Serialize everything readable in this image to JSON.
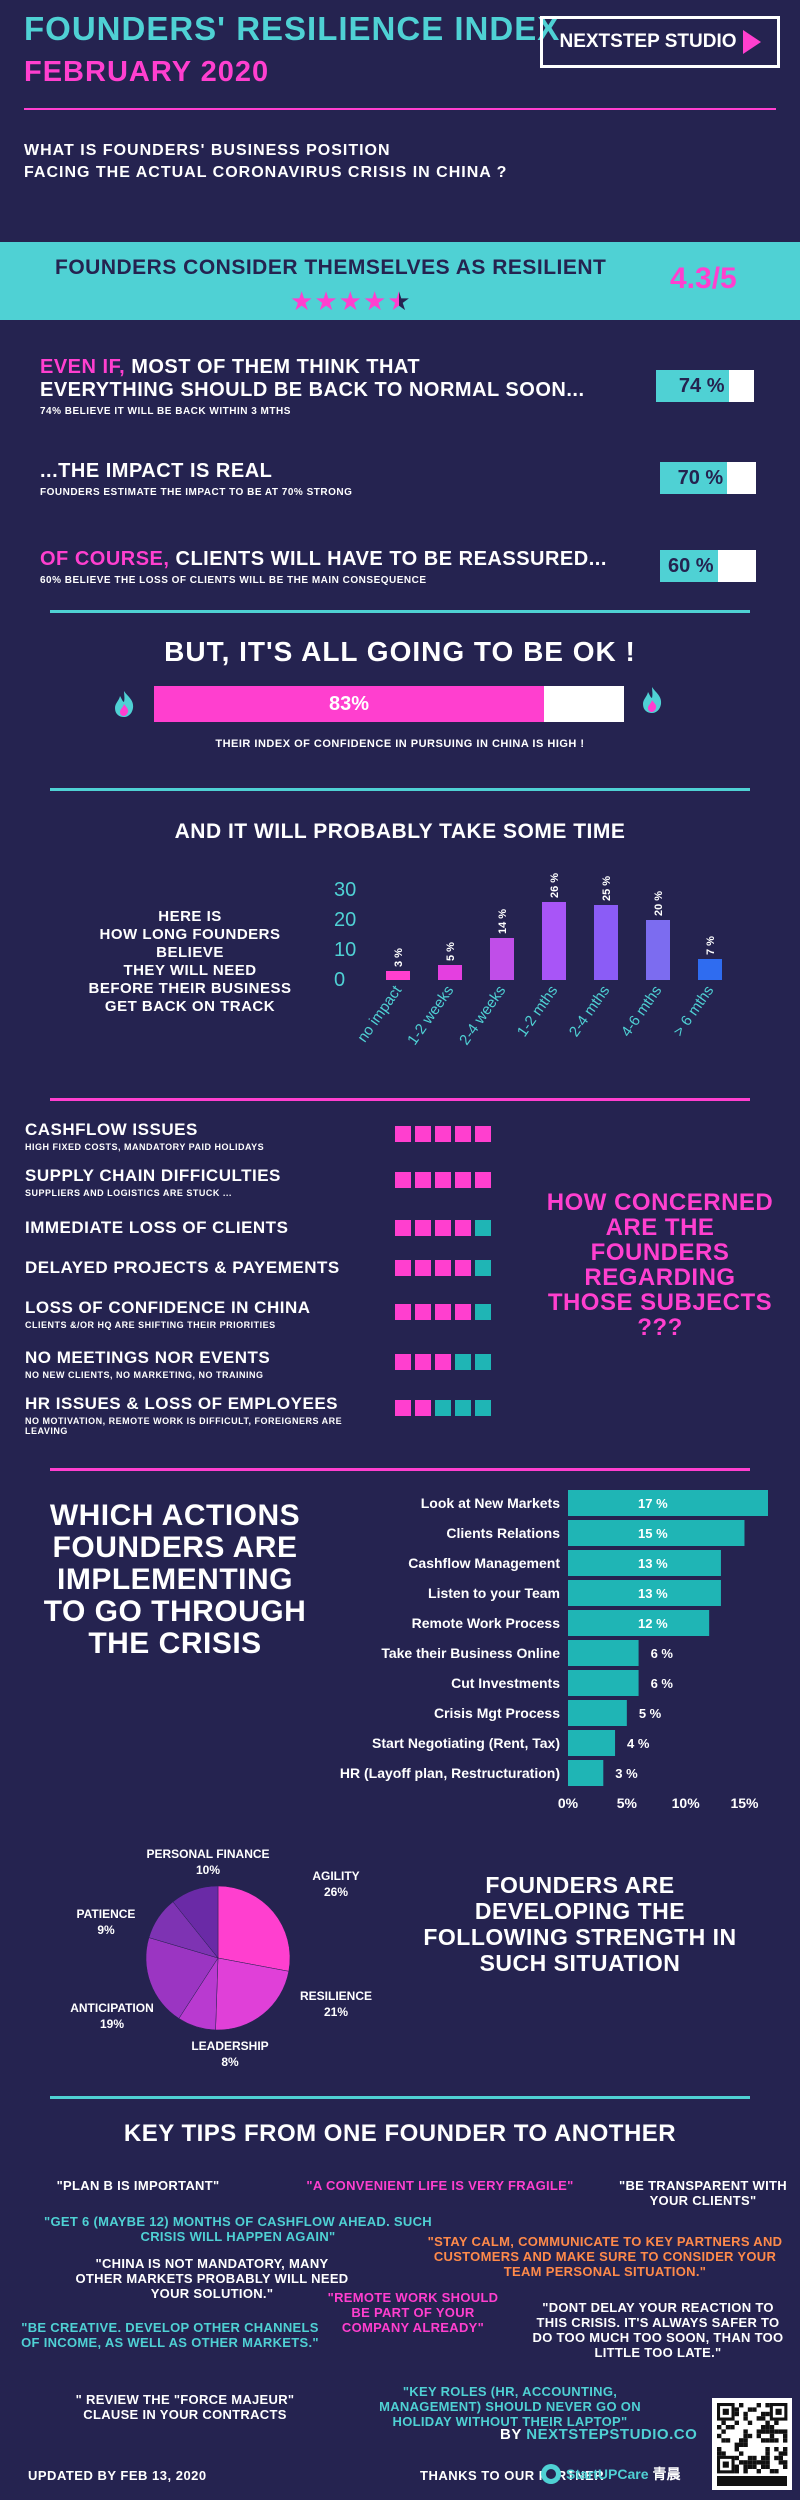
{
  "header": {
    "title": "FOUNDERS' RESILIENCE INDEX",
    "date": "FEBRUARY 2020",
    "logo": "NEXTSTEP STUDIO",
    "question_line1": "WHAT IS FOUNDERS' BUSINESS POSITION",
    "question_line2": "FACING THE ACTUAL CORONAVIRUS CRISIS IN CHINA ?"
  },
  "resilience": {
    "title": "FOUNDERS CONSIDER THEMSELVES AS RESILIENT",
    "score": "4.3/5",
    "stars_value": 4.3,
    "stars_max": 5
  },
  "statements": [
    {
      "prefix": "EVEN IF,",
      "head_rest": " MOST OF THEM THINK THAT",
      "head_line2": "EVERYTHING SHOULD BE BACK TO NORMAL SOON...",
      "sub": "74% BELIEVE IT WILL BE BACK WITHIN 3 MTHS",
      "value_label": "74 %",
      "value": 74
    },
    {
      "prefix": "",
      "head_rest": "...THE IMPACT IS REAL",
      "head_line2": "",
      "sub": "FOUNDERS ESTIMATE THE IMPACT TO BE AT 70% STRONG",
      "value_label": "70 %",
      "value": 70
    },
    {
      "prefix": "OF COURSE,",
      "head_rest": " CLIENTS WILL HAVE TO BE REASSURED...",
      "head_line2": "",
      "sub": "60% BELIEVE THE LOSS OF CLIENTS WILL BE THE MAIN CONSEQUENCE",
      "value_label": "60 %",
      "value": 60
    }
  ],
  "confidence": {
    "title": "BUT, IT'S ALL GOING TO BE OK !",
    "value_label": "83%",
    "value": 83,
    "caption": "THEIR INDEX OF CONFIDENCE IN PURSUING IN CHINA IS HIGH !"
  },
  "time": {
    "title": "AND IT WILL PROBABLY TAKE SOME TIME",
    "text_lines": [
      "HERE IS",
      "HOW LONG FOUNDERS",
      "BELIEVE",
      "THEY WILL NEED",
      "BEFORE THEIR BUSINESS",
      "GET BACK ON TRACK"
    ]
  },
  "chart_data": [
    {
      "type": "bar",
      "categories": [
        "no impact",
        "1-2 weeks",
        "2-4 weeks",
        "1-2 mths",
        "2-4 mths",
        "4-6 mths",
        "> 6 mths"
      ],
      "values": [
        3,
        5,
        14,
        26,
        25,
        20,
        7
      ],
      "data_labels": [
        "3 %",
        "5 %",
        "14 %",
        "26 %",
        "25 %",
        "20 %",
        "7 %"
      ],
      "colors": [
        "#ff3fcf",
        "#e43fe0",
        "#c04ee8",
        "#a855f7",
        "#8b5cf6",
        "#7c6cf0",
        "#2f6cf0"
      ],
      "yticks": [
        "30",
        "20",
        "10",
        "0"
      ],
      "ylim": [
        0,
        30
      ]
    },
    {
      "type": "bar",
      "orientation": "horizontal",
      "categories": [
        "Look at New Markets",
        "Clients Relations",
        "Cashflow Management",
        "Listen to your Team",
        "Remote Work Process",
        "Take their Business Online",
        "Cut Investments",
        "Crisis Mgt Process",
        "Start Negotiating (Rent, Tax)",
        "HR (Layoff plan, Restructuration)"
      ],
      "values": [
        17,
        15,
        13,
        13,
        12,
        6,
        6,
        5,
        4,
        3
      ],
      "data_labels": [
        "17 %",
        "15 %",
        "13 %",
        "13 %",
        "12 %",
        "6 %",
        "6 %",
        "5 %",
        "4 %",
        "3 %"
      ],
      "xticks": [
        "0%",
        "5%",
        "10%",
        "15%"
      ],
      "xlim": [
        0,
        17
      ]
    },
    {
      "type": "pie",
      "labels": [
        "AGILITY",
        "RESILIENCE",
        "LEADERSHIP",
        "ANTICIPATION",
        "PATIENCE",
        "PERSONAL FINANCE"
      ],
      "values": [
        26,
        21,
        8,
        19,
        9,
        10
      ],
      "value_labels": [
        "26%",
        "21%",
        "8%",
        "19%",
        "9%",
        "10%"
      ],
      "colors": [
        "#ff3fcf",
        "#e040d8",
        "#b93ad0",
        "#9b35c2",
        "#7e33b3",
        "#6a2aa6"
      ]
    }
  ],
  "concerns": {
    "question": "HOW CONCERNED ARE THE FOUNDERS REGARDING THOSE SUBJECTS ???",
    "items": [
      {
        "title": "CASHFLOW ISSUES",
        "sub": "HIGH FIXED COSTS, MANDATORY PAID HOLIDAYS",
        "level": 5
      },
      {
        "title": "SUPPLY CHAIN DIFFICULTIES",
        "sub": "SUPPLIERS AND LOGISTICS ARE STUCK ...",
        "level": 5
      },
      {
        "title": "IMMEDIATE LOSS OF CLIENTS",
        "sub": "",
        "level": 4
      },
      {
        "title": "DELAYED PROJECTS & PAYEMENTS",
        "sub": "",
        "level": 4
      },
      {
        "title": "LOSS OF CONFIDENCE IN CHINA",
        "sub": "CLIENTS &/OR HQ ARE SHIFTING THEIR PRIORITIES",
        "level": 4
      },
      {
        "title": "NO MEETINGS NOR EVENTS",
        "sub": "NO NEW CLIENTS, NO MARKETING, NO TRAINING",
        "level": 3
      },
      {
        "title": "HR ISSUES & LOSS OF EMPLOYEES",
        "sub": "NO MOTIVATION, REMOTE WORK IS DIFFICULT, FOREIGNERS ARE LEAVING",
        "level": 2
      }
    ],
    "max": 5,
    "on_color": "#ff3fcf",
    "off_color": "#1fb5b5"
  },
  "actions": {
    "title": "WHICH ACTIONS FOUNDERS ARE IMPLEMENTING TO GO THROUGH THE CRISIS"
  },
  "strengths": {
    "title": "FOUNDERS ARE DEVELOPING THE FOLLOWING STRENGTH IN SUCH SITUATION"
  },
  "tips": {
    "title": "KEY TIPS FROM ONE FOUNDER TO ANOTHER",
    "items": [
      "\"PLAN B IS IMPORTANT\"",
      "\"A CONVENIENT LIFE IS VERY FRAGILE\"",
      "\"BE TRANSPARENT WITH YOUR CLIENTS\"",
      "\"GET 6 (MAYBE 12) MONTHS OF CASHFLOW AHEAD. SUCH CRISIS WILL HAPPEN AGAIN\"",
      "\"CHINA IS NOT MANDATORY, MANY OTHER MARKETS PROBABLY WILL NEED YOUR SOLUTION.\"",
      "\"STAY CALM, COMMUNICATE TO KEY PARTNERS AND CUSTOMERS AND MAKE SURE TO CONSIDER YOUR TEAM PERSONAL SITUATION.\"",
      "\"REMOTE WORK SHOULD BE PART OF YOUR COMPANY ALREADY\"",
      "\"BE CREATIVE. DEVELOP OTHER CHANNELS OF INCOME, AS WELL AS OTHER MARKETS.\"",
      "\"DONT DELAY YOUR REACTION TO THIS CRISIS. IT'S ALWAYS SAFER TO DO TOO MUCH TOO SOON, THAN TOO LITTLE TOO LATE.\"",
      "\" REVIEW THE \"FORCE MAJEUR\" CLAUSE IN YOUR CONTRACTS",
      "\"KEY ROLES (HR, ACCOUNTING, MANAGEMENT) SHOULD NEVER GO ON HOLIDAY WITHOUT THEIR LAPTOP\""
    ]
  },
  "footer": {
    "updated": "UPDATED BY FEB 13, 2020",
    "by_prefix": "BY ",
    "by_name": "NEXTSTEPSTUDIO.CO",
    "thanks": "THANKS TO OUR PARTNER",
    "partner": "StartUPCare",
    "partner_cn": "青晨"
  },
  "colors": {
    "background": "#252350",
    "teal": "#4fd1d4",
    "pink": "#ff3fcf",
    "orange": "#ff8a4a"
  }
}
